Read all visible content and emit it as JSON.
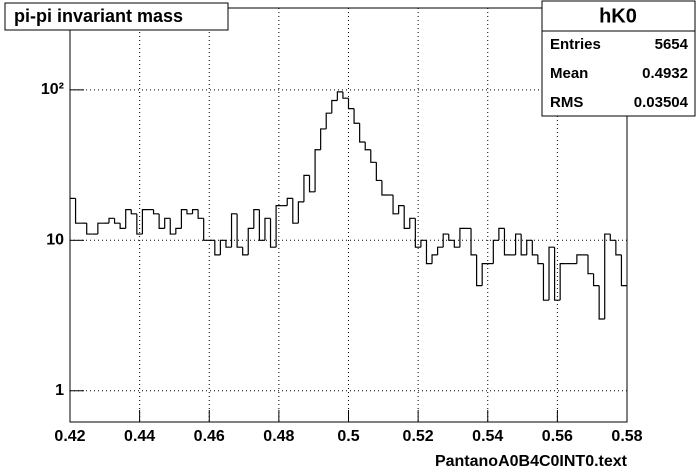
{
  "chart_data": {
    "type": "histogram",
    "title": "pi-pi invariant mass",
    "x_label": "PantanoA0B4C0INT0.text",
    "bins": [
      0.42,
      0.4216,
      0.4232,
      0.4248,
      0.4264,
      0.428,
      0.4296,
      0.4312,
      0.4328,
      0.4344,
      0.436,
      0.4376,
      0.4392,
      0.4408,
      0.4424,
      0.444,
      0.4456,
      0.4472,
      0.4488,
      0.4504,
      0.452,
      0.4536,
      0.4552,
      0.4568,
      0.4584,
      0.46,
      0.4616,
      0.4632,
      0.4648,
      0.4664,
      0.468,
      0.4696,
      0.4712,
      0.4728,
      0.4744,
      0.476,
      0.4776,
      0.4792,
      0.4808,
      0.4824,
      0.484,
      0.4856,
      0.4872,
      0.4888,
      0.4904,
      0.492,
      0.4936,
      0.4952,
      0.4968,
      0.4984,
      0.5,
      0.5016,
      0.5032,
      0.5048,
      0.5064,
      0.508,
      0.5096,
      0.5112,
      0.5128,
      0.5144,
      0.516,
      0.5176,
      0.5192,
      0.5208,
      0.5224,
      0.524,
      0.5256,
      0.5272,
      0.5288,
      0.5304,
      0.532,
      0.5336,
      0.5352,
      0.5368,
      0.5384,
      0.54,
      0.5416,
      0.5432,
      0.5448,
      0.5464,
      0.548,
      0.5496,
      0.5512,
      0.5528,
      0.5544,
      0.556,
      0.5576,
      0.5592,
      0.5608,
      0.5624,
      0.564,
      0.5656,
      0.5672,
      0.5688,
      0.5704,
      0.572,
      0.5736,
      0.5752,
      0.5768,
      0.5784,
      0.58
    ],
    "values": [
      19,
      13,
      13,
      11,
      11,
      13,
      13,
      14,
      13,
      12,
      16,
      15,
      11,
      16,
      16,
      15,
      12,
      14,
      11,
      12,
      16,
      15,
      16,
      14,
      10,
      10,
      8,
      10,
      9,
      15,
      9,
      8,
      12,
      16,
      10,
      14,
      9,
      17,
      17,
      19,
      13,
      18,
      27,
      21,
      40,
      55,
      70,
      85,
      97,
      88,
      75,
      60,
      45,
      40,
      33,
      25,
      20,
      20,
      15,
      17,
      12,
      14,
      9,
      10,
      7,
      8,
      9,
      11,
      10,
      9,
      12,
      12,
      8,
      5,
      7,
      7,
      10,
      12,
      8,
      8,
      11,
      8,
      10,
      8,
      7,
      4,
      9,
      4,
      7,
      7,
      7,
      8,
      8,
      6,
      5,
      3,
      11,
      10,
      8,
      5
    ],
    "color": "#000000",
    "xlim": [
      0.42,
      0.58
    ],
    "xticks": [
      0.42,
      0.44,
      0.46,
      0.48,
      0.5,
      0.52,
      0.54,
      0.56,
      0.58
    ],
    "ylim": [
      0.62,
      350
    ],
    "log_y": true,
    "yticks": [
      1,
      10,
      {
        "value": 100,
        "label": "10²"
      }
    ],
    "grid": true,
    "stats": {
      "title": "hK0",
      "rows": [
        [
          "Entries",
          5654
        ],
        [
          "Mean",
          0.4932
        ],
        [
          "RMS",
          0.03504
        ]
      ]
    }
  }
}
